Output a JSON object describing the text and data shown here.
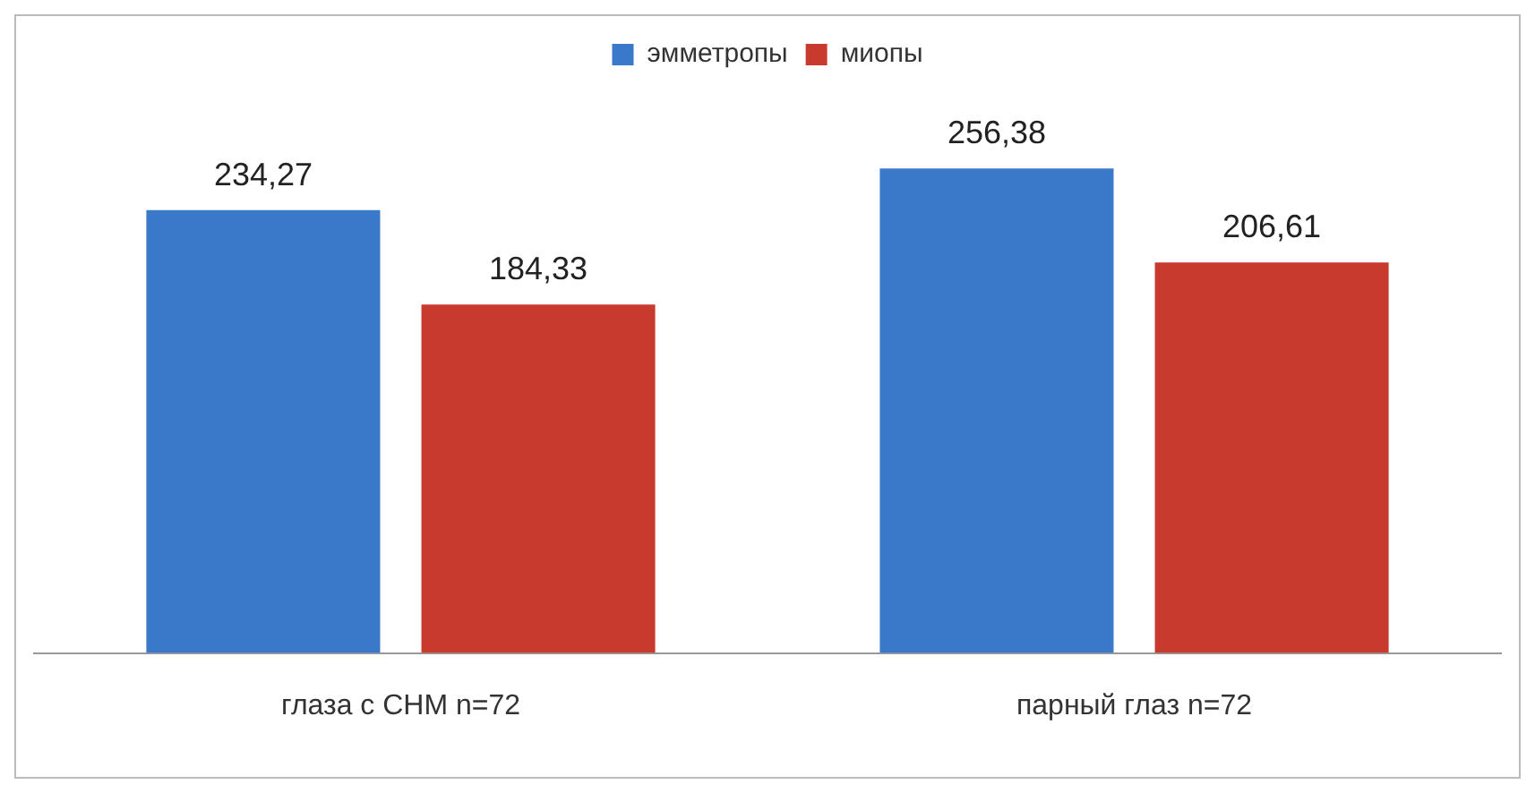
{
  "chart_data": {
    "type": "bar",
    "categories": [
      "глаза с СНМ n=72",
      "парный глаз n=72"
    ],
    "series": [
      {
        "name": "эмметропы",
        "color": "#3a78c9",
        "values": [
          234.27,
          256.38
        ],
        "value_labels": [
          "234,27",
          "256,38"
        ]
      },
      {
        "name": "миопы",
        "color": "#c93a2e",
        "values": [
          184.33,
          206.61
        ],
        "value_labels": [
          "184,33",
          "206,61"
        ]
      }
    ],
    "legend": "top"
  }
}
